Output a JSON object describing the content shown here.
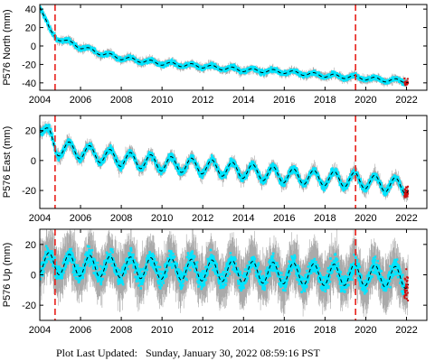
{
  "chart_data": [
    {
      "type": "scatter",
      "component": "North",
      "ylabel": "P576 North (mm)",
      "x_ticks": [
        2004,
        2006,
        2008,
        2010,
        2012,
        2014,
        2016,
        2018,
        2020,
        2022
      ],
      "y_ticks": [
        -40,
        -20,
        0,
        20,
        40
      ],
      "xlim": [
        2004,
        2023
      ],
      "ylim": [
        -48,
        45
      ],
      "event_lines": [
        2004.75,
        2019.5
      ],
      "model_knots": [
        [
          2004.0,
          44
        ],
        [
          2004.5,
          16
        ],
        [
          2004.8,
          9
        ],
        [
          2005.2,
          6
        ],
        [
          2006.0,
          -1
        ],
        [
          2007.0,
          -8
        ],
        [
          2008.0,
          -13
        ],
        [
          2010.0,
          -19
        ],
        [
          2012.0,
          -22
        ],
        [
          2014.0,
          -26
        ],
        [
          2016.0,
          -28
        ],
        [
          2018.0,
          -32
        ],
        [
          2019.5,
          -34
        ],
        [
          2021.0,
          -37
        ],
        [
          2022.0,
          -38
        ]
      ],
      "seasonal_amplitude": 2,
      "scatter_spread": 2,
      "errorbar_spread": 3
    },
    {
      "type": "scatter",
      "component": "East",
      "ylabel": "P576 East (mm)",
      "x_ticks": [
        2004,
        2006,
        2008,
        2010,
        2012,
        2014,
        2016,
        2018,
        2020,
        2022
      ],
      "y_ticks": [
        -20,
        0,
        20
      ],
      "xlim": [
        2004,
        2023
      ],
      "ylim": [
        -32,
        30
      ],
      "event_lines": [
        2004.75,
        2019.5
      ],
      "model_knots": [
        [
          2004.0,
          24
        ],
        [
          2004.5,
          15
        ],
        [
          2004.8,
          8
        ],
        [
          2005.2,
          8
        ],
        [
          2006.0,
          6
        ],
        [
          2008.0,
          1
        ],
        [
          2010.0,
          -2
        ],
        [
          2012.0,
          -4
        ],
        [
          2014.0,
          -7
        ],
        [
          2016.0,
          -10
        ],
        [
          2018.0,
          -12
        ],
        [
          2019.5,
          -13
        ],
        [
          2021.0,
          -16
        ],
        [
          2022.0,
          -17
        ]
      ],
      "seasonal_amplitude": 5,
      "scatter_spread": 2,
      "errorbar_spread": 3
    },
    {
      "type": "scatter",
      "component": "Up",
      "ylabel": "P576 Up (mm)",
      "x_ticks": [
        2004,
        2006,
        2008,
        2010,
        2012,
        2014,
        2016,
        2018,
        2020,
        2022
      ],
      "y_ticks": [
        -20,
        0,
        20
      ],
      "xlim": [
        2004,
        2023
      ],
      "ylim": [
        -30,
        30
      ],
      "event_lines": [
        2004.75,
        2019.5
      ],
      "model_knots": [
        [
          2004.0,
          8
        ],
        [
          2006.0,
          6
        ],
        [
          2008.0,
          5
        ],
        [
          2010.0,
          4
        ],
        [
          2012.0,
          3
        ],
        [
          2014.0,
          2
        ],
        [
          2016.0,
          1
        ],
        [
          2018.0,
          0
        ],
        [
          2019.5,
          0
        ],
        [
          2021.0,
          -1
        ],
        [
          2022.0,
          -2
        ]
      ],
      "seasonal_amplitude": 7,
      "scatter_spread": 5,
      "errorbar_spread": 12
    }
  ],
  "colors": {
    "data": "#00e5ff",
    "error_bars": "#aaaaaa",
    "model": "#000000",
    "event_line": "#e8201a",
    "recent_data": "#cc1111"
  },
  "footer": {
    "label": "Plot Last Updated:",
    "timestamp": "Sunday, January 30, 2022 08:59:16 PST"
  }
}
